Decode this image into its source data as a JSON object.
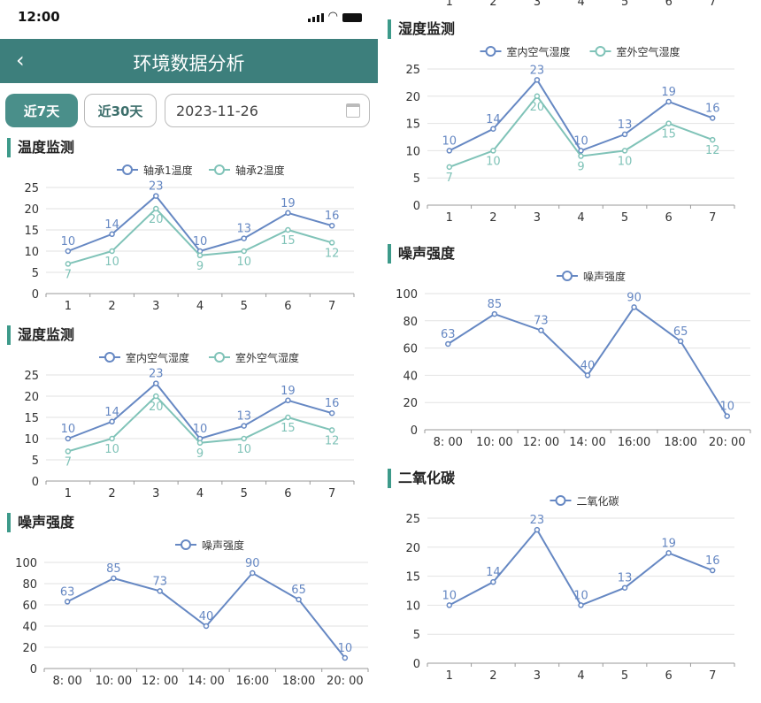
{
  "status_bar": {
    "time": "12:00",
    "icons": [
      "signal-icon",
      "wifi-icon",
      "battery-icon"
    ]
  },
  "header": {
    "back_icon": "chevron-left-icon",
    "title": "环境数据分析"
  },
  "filters": {
    "btn_7": "近7天",
    "btn_30": "近30天",
    "date": "2023-11-26",
    "calendar_icon": "calendar-icon"
  },
  "colors": {
    "header": "#3d7f7c",
    "series1": "#6688c3",
    "series2": "#80c3b8",
    "accent": "#3d9a8a"
  },
  "left": {
    "titles": [
      "温度监测",
      "湿度监测",
      "噪声强度"
    ]
  },
  "right": {
    "titles": [
      "湿度监测",
      "噪声强度",
      "二氧化碳"
    ],
    "top_partial_ticks": [
      "1",
      "2",
      "3",
      "4",
      "5",
      "6",
      "7"
    ]
  },
  "chart_data": [
    {
      "type": "line",
      "panel": "left",
      "categories": [
        "1",
        "2",
        "3",
        "4",
        "5",
        "6",
        "7"
      ],
      "ylim": [
        0,
        25
      ],
      "yticks": [
        "0",
        "5",
        "10",
        "15",
        "20",
        "25"
      ],
      "grid": true,
      "legend": "top-center",
      "series": [
        {
          "name": "轴承1温度",
          "values": [
            10,
            14,
            23,
            10,
            13,
            19,
            16
          ]
        },
        {
          "name": "轴承2温度",
          "values": [
            7,
            10,
            20,
            9,
            10,
            15,
            12
          ]
        }
      ]
    },
    {
      "type": "line",
      "panel": "left",
      "categories": [
        "1",
        "2",
        "3",
        "4",
        "5",
        "6",
        "7"
      ],
      "ylim": [
        0,
        25
      ],
      "yticks": [
        "0",
        "5",
        "10",
        "15",
        "20",
        "25"
      ],
      "grid": true,
      "legend": "top-center",
      "series": [
        {
          "name": "室内空气湿度",
          "values": [
            10,
            14,
            23,
            10,
            13,
            19,
            16
          ]
        },
        {
          "name": "室外空气湿度",
          "values": [
            7,
            10,
            20,
            9,
            10,
            15,
            12
          ]
        }
      ]
    },
    {
      "type": "line",
      "panel": "left",
      "categories": [
        "8: 00",
        "10: 00",
        "12: 00",
        "14: 00",
        "16:00",
        "18:00",
        "20: 00"
      ],
      "ylim": [
        0,
        100
      ],
      "yticks": [
        "0",
        "20",
        "40",
        "60",
        "80",
        "100"
      ],
      "grid": true,
      "legend": "top-center",
      "series": [
        {
          "name": "噪声强度",
          "values": [
            63,
            85,
            73,
            40,
            90,
            65,
            10
          ]
        }
      ]
    },
    {
      "type": "line",
      "panel": "right",
      "categories": [
        "1",
        "2",
        "3",
        "4",
        "5",
        "6",
        "7"
      ],
      "ylim": [
        0,
        25
      ],
      "yticks": [
        "0",
        "5",
        "10",
        "15",
        "20",
        "25"
      ],
      "grid": true,
      "legend": "top-center",
      "series": [
        {
          "name": "室内空气湿度",
          "values": [
            10,
            14,
            23,
            10,
            13,
            19,
            16
          ]
        },
        {
          "name": "室外空气湿度",
          "values": [
            7,
            10,
            20,
            9,
            10,
            15,
            12
          ]
        }
      ]
    },
    {
      "type": "line",
      "panel": "right",
      "categories": [
        "8: 00",
        "10: 00",
        "12: 00",
        "14: 00",
        "16:00",
        "18:00",
        "20: 00"
      ],
      "ylim": [
        0,
        100
      ],
      "yticks": [
        "0",
        "20",
        "40",
        "60",
        "80",
        "100"
      ],
      "grid": true,
      "legend": "top-center",
      "series": [
        {
          "name": "噪声强度",
          "values": [
            63,
            85,
            73,
            40,
            90,
            65,
            10
          ]
        }
      ]
    },
    {
      "type": "line",
      "panel": "right",
      "categories": [
        "1",
        "2",
        "3",
        "4",
        "5",
        "6",
        "7"
      ],
      "ylim": [
        0,
        25
      ],
      "yticks": [
        "0",
        "5",
        "10",
        "15",
        "20",
        "25"
      ],
      "grid": true,
      "legend": "top-center",
      "series": [
        {
          "name": "二氧化碳",
          "values": [
            10,
            14,
            23,
            10,
            13,
            19,
            16
          ]
        }
      ]
    }
  ]
}
